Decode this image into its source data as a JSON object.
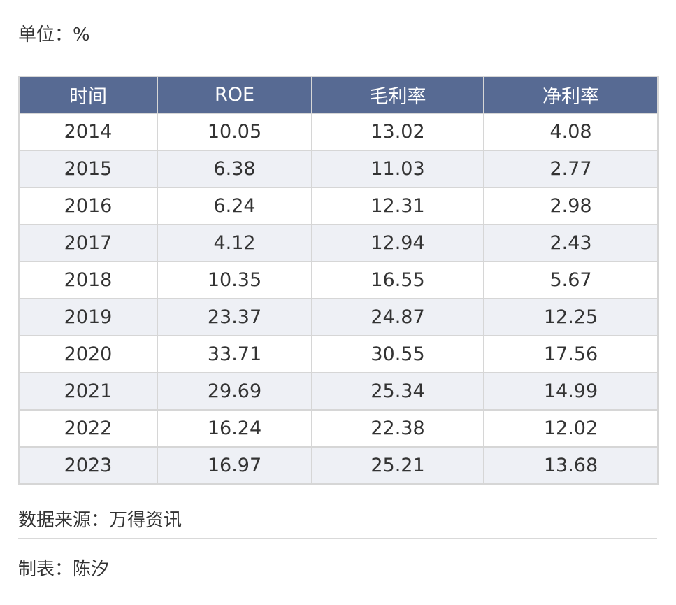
{
  "unit": "单位：%",
  "source": "数据来源：万得资讯",
  "maker": "制表：陈汐",
  "colors": {
    "header_bg": "#576a93",
    "header_text": "#ffffff",
    "row_alt_bg": "#eef0f5",
    "grid": "#d6d6d6"
  },
  "chart_data": {
    "type": "table",
    "columns": [
      "时间",
      "ROE",
      "毛利率",
      "净利率"
    ],
    "rows": [
      [
        "2014",
        "10.05",
        "13.02",
        "4.08"
      ],
      [
        "2015",
        "6.38",
        "11.03",
        "2.77"
      ],
      [
        "2016",
        "6.24",
        "12.31",
        "2.98"
      ],
      [
        "2017",
        "4.12",
        "12.94",
        "2.43"
      ],
      [
        "2018",
        "10.35",
        "16.55",
        "5.67"
      ],
      [
        "2019",
        "23.37",
        "24.87",
        "12.25"
      ],
      [
        "2020",
        "33.71",
        "30.55",
        "17.56"
      ],
      [
        "2021",
        "29.69",
        "25.34",
        "14.99"
      ],
      [
        "2022",
        "16.24",
        "22.38",
        "12.02"
      ],
      [
        "2023",
        "16.97",
        "25.21",
        "13.68"
      ]
    ]
  }
}
